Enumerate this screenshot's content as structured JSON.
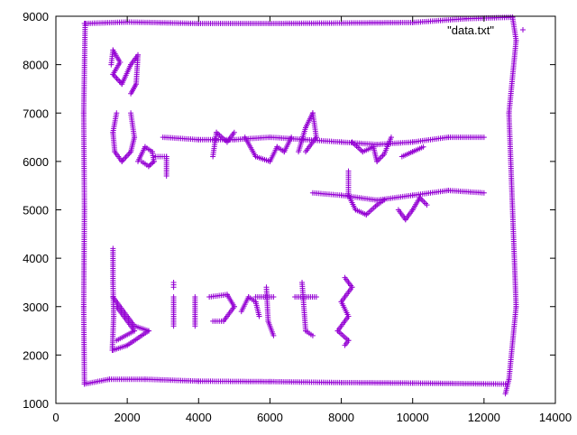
{
  "chart_data": {
    "type": "scatter",
    "title": "",
    "xlabel": "",
    "ylabel": "",
    "xlim": [
      0,
      14000
    ],
    "ylim": [
      1000,
      9000
    ],
    "x_ticks": [
      "0",
      "2000",
      "4000",
      "6000",
      "8000",
      "10000",
      "12000",
      "14000"
    ],
    "y_ticks": [
      "1000",
      "2000",
      "3000",
      "4000",
      "5000",
      "6000",
      "7000",
      "8000",
      "9000"
    ],
    "grid": false,
    "legend_position": "top-right",
    "legend_marker": "+",
    "series": [
      {
        "name": "\"data.txt\"",
        "color": "#9400d3",
        "marker": "+",
        "strokes": [
          [
            [
              800,
              8850
            ],
            [
              2000,
              8880
            ],
            [
              4000,
              8850
            ],
            [
              6000,
              8850
            ],
            [
              8000,
              8860
            ],
            [
              10000,
              8870
            ],
            [
              11500,
              8950
            ],
            [
              12800,
              8980
            ]
          ],
          [
            [
              12800,
              8980
            ],
            [
              12900,
              8500
            ],
            [
              12700,
              7000
            ],
            [
              12800,
              5000
            ],
            [
              12900,
              3000
            ],
            [
              12700,
              1500
            ],
            [
              12600,
              1200
            ]
          ],
          [
            [
              12600,
              1400
            ],
            [
              10000,
              1420
            ],
            [
              8000,
              1430
            ],
            [
              6000,
              1450
            ],
            [
              4000,
              1460
            ],
            [
              2500,
              1500
            ],
            [
              1500,
              1500
            ],
            [
              800,
              1400
            ]
          ],
          [
            [
              800,
              1400
            ],
            [
              780,
              3000
            ],
            [
              800,
              5000
            ],
            [
              780,
              7000
            ],
            [
              820,
              8850
            ]
          ],
          [
            [
              1550,
              8000
            ],
            [
              1600,
              8300
            ],
            [
              1800,
              8050
            ],
            [
              1600,
              7800
            ],
            [
              1850,
              7600
            ],
            [
              2100,
              8000
            ],
            [
              2300,
              8200
            ],
            [
              2250,
              7600
            ],
            [
              2100,
              7400
            ]
          ],
          [
            [
              1700,
              7000
            ],
            [
              1600,
              6600
            ],
            [
              1650,
              6200
            ],
            [
              1850,
              6000
            ],
            [
              2100,
              6200
            ],
            [
              2200,
              6500
            ],
            [
              2100,
              7000
            ]
          ],
          [
            [
              2300,
              6000
            ],
            [
              2500,
              6300
            ],
            [
              2700,
              6200
            ],
            [
              2750,
              6000
            ],
            [
              2600,
              5900
            ],
            [
              2400,
              6000
            ]
          ],
          [
            [
              2800,
              6100
            ],
            [
              3100,
              6100
            ],
            [
              3100,
              5700
            ]
          ],
          [
            [
              3000,
              6500
            ],
            [
              4000,
              6450
            ],
            [
              5000,
              6450
            ],
            [
              6000,
              6500
            ],
            [
              7000,
              6450
            ],
            [
              8000,
              6400
            ],
            [
              9000,
              6350
            ],
            [
              10000,
              6400
            ],
            [
              11000,
              6500
            ],
            [
              12000,
              6500
            ]
          ],
          [
            [
              4400,
              6100
            ],
            [
              4500,
              6600
            ],
            [
              4800,
              6400
            ],
            [
              5000,
              6600
            ]
          ],
          [
            [
              5300,
              6500
            ],
            [
              5600,
              6100
            ],
            [
              6000,
              6000
            ],
            [
              6200,
              6300
            ],
            [
              6400,
              6200
            ],
            [
              6600,
              6500
            ]
          ],
          [
            [
              6800,
              6200
            ],
            [
              7000,
              6700
            ],
            [
              7200,
              7000
            ],
            [
              7300,
              6500
            ],
            [
              7000,
              6200
            ]
          ],
          [
            [
              8300,
              6400
            ],
            [
              8600,
              6200
            ],
            [
              8900,
              6300
            ],
            [
              9000,
              6000
            ],
            [
              9200,
              6150
            ],
            [
              9400,
              6500
            ]
          ],
          [
            [
              9700,
              6100
            ],
            [
              10000,
              6200
            ],
            [
              10300,
              6300
            ]
          ],
          [
            [
              7200,
              5350
            ],
            [
              8000,
              5300
            ],
            [
              9000,
              5200
            ],
            [
              10000,
              5300
            ],
            [
              11000,
              5400
            ],
            [
              12000,
              5350
            ]
          ],
          [
            [
              8200,
              5800
            ],
            [
              8200,
              5300
            ],
            [
              8400,
              5000
            ],
            [
              8700,
              4900
            ],
            [
              9000,
              5100
            ],
            [
              9200,
              5200
            ]
          ],
          [
            [
              9600,
              5000
            ],
            [
              9800,
              4800
            ],
            [
              10000,
              5000
            ],
            [
              10200,
              5250
            ],
            [
              10400,
              5100
            ]
          ],
          [
            [
              1600,
              4200
            ],
            [
              1600,
              3500
            ],
            [
              1620,
              2800
            ],
            [
              1580,
              2100
            ]
          ],
          [
            [
              1600,
              3200
            ],
            [
              2200,
              2600
            ],
            [
              2600,
              2500
            ],
            [
              2000,
              2200
            ],
            [
              1600,
              2100
            ]
          ],
          [
            [
              1700,
              3000
            ],
            [
              2200,
              2500
            ],
            [
              1700,
              2300
            ]
          ],
          [
            [
              3300,
              2600
            ],
            [
              3300,
              3200
            ]
          ],
          [
            [
              3300,
              3400
            ],
            [
              3300,
              3500
            ]
          ],
          [
            [
              3900,
              2600
            ],
            [
              3900,
              3200
            ]
          ],
          [
            [
              4300,
              3200
            ],
            [
              4800,
              3250
            ],
            [
              5000,
              3000
            ],
            [
              4700,
              2700
            ],
            [
              4400,
              2700
            ]
          ],
          [
            [
              5200,
              2900
            ],
            [
              5400,
              3200
            ],
            [
              5600,
              3100
            ],
            [
              5700,
              2800
            ]
          ],
          [
            [
              5600,
              3200
            ],
            [
              6100,
              3200
            ]
          ],
          [
            [
              5900,
              3400
            ],
            [
              5950,
              2700
            ],
            [
              6100,
              2400
            ]
          ],
          [
            [
              6700,
              3200
            ],
            [
              7300,
              3200
            ]
          ],
          [
            [
              6900,
              3500
            ],
            [
              7000,
              2500
            ],
            [
              7200,
              2400
            ]
          ],
          [
            [
              8100,
              3600
            ],
            [
              8300,
              3400
            ],
            [
              8000,
              3100
            ],
            [
              8200,
              2800
            ],
            [
              7900,
              2500
            ],
            [
              8200,
              2300
            ],
            [
              8100,
              2200
            ]
          ]
        ]
      }
    ]
  }
}
